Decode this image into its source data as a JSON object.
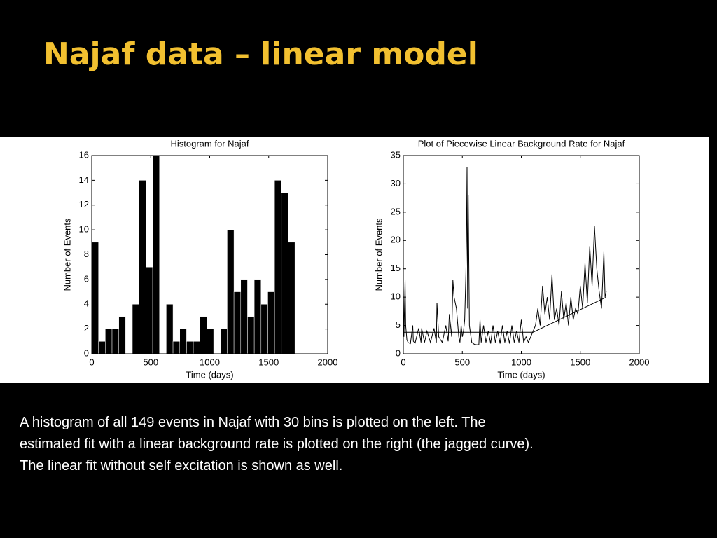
{
  "slide": {
    "title": "Najaf data – linear model",
    "caption": [
      "A histogram of all 149 events in Najaf with 30 bins is plotted on the left. The",
      "estimated fit with a linear background rate is plotted on the right (the jagged curve).",
      "The linear fit without self excitation is shown as well."
    ]
  },
  "chart_data": [
    {
      "type": "histogram",
      "title": "Histogram for Najaf",
      "x_label": "Time (days)",
      "y_label": "Number of Events",
      "color": "#000000",
      "bins": [
        0,
        57.4,
        114.8,
        172.2,
        229.6,
        287,
        344.4,
        401.8,
        459.2,
        516.6,
        574,
        631.4,
        688.8,
        746.2,
        803.6,
        861,
        918.4,
        975.8,
        1033.2,
        1090.6,
        1148,
        1205.4,
        1262.8,
        1320.2,
        1377.6,
        1435,
        1492.4,
        1549.8,
        1607.2,
        1664.6,
        1722
      ],
      "values": [
        9,
        1,
        2,
        2,
        3,
        0,
        4,
        14,
        7,
        16,
        0,
        4,
        1,
        2,
        1,
        1,
        3,
        2,
        0,
        2,
        10,
        5,
        6,
        3,
        6,
        4,
        5,
        14,
        13,
        9
      ],
      "xlim": [
        0,
        2000
      ],
      "xticks": [
        0,
        500,
        1000,
        1500,
        2000
      ],
      "ylim": [
        0,
        16
      ],
      "yticks": [
        0,
        2,
        4,
        6,
        8,
        10,
        12,
        14,
        16
      ]
    },
    {
      "type": "line",
      "title": "Plot of Piecewise Linear Background Rate for Najaf",
      "x_label": "Time (days)",
      "y_label": "Number of Events",
      "series": [
        {
          "color": "#000000",
          "x": [
            0,
            5,
            15,
            20,
            30,
            40,
            60,
            80,
            85,
            100,
            130,
            150,
            155,
            180,
            200,
            230,
            260,
            280,
            285,
            300,
            330,
            360,
            380,
            390,
            410,
            420,
            430,
            450,
            470,
            480,
            490,
            500,
            510,
            520,
            530,
            535,
            540,
            545,
            550,
            560,
            580,
            600,
            620,
            640,
            650,
            660,
            680,
            700,
            720,
            740,
            760,
            780,
            800,
            820,
            840,
            860,
            880,
            900,
            920,
            940,
            960,
            980,
            1000,
            1020,
            1040,
            1060,
            1080,
            1100,
            1120,
            1140,
            1160,
            1180,
            1200,
            1220,
            1240,
            1260,
            1280,
            1300,
            1320,
            1340,
            1360,
            1380,
            1400,
            1420,
            1440,
            1460,
            1480,
            1500,
            1520,
            1540,
            1560,
            1580,
            1600,
            1620,
            1640,
            1660,
            1680,
            1700,
            1710,
            1720
          ],
          "values": [
            12,
            3,
            13,
            5,
            2.5,
            2,
            1.8,
            5,
            2.2,
            1.9,
            4.5,
            2,
            4.5,
            2,
            4,
            2,
            4.5,
            2,
            9,
            3,
            2,
            5,
            2.2,
            7,
            3,
            13,
            10,
            8,
            3,
            2,
            5,
            3,
            4,
            6,
            14,
            20,
            33,
            8,
            28,
            5,
            2,
            1.7,
            1.6,
            1.6,
            6,
            2,
            5,
            2,
            4,
            1.8,
            5,
            2,
            4,
            1.8,
            5,
            2,
            4,
            1.8,
            5,
            2,
            4,
            2,
            6,
            2,
            3,
            2,
            3,
            4,
            5,
            8,
            5,
            12,
            7,
            10,
            6,
            14,
            6,
            8,
            5,
            11,
            6,
            9,
            5,
            10,
            6,
            8,
            7,
            12,
            8,
            16,
            9,
            19,
            12,
            22.5,
            15,
            11,
            8,
            18,
            10,
            11
          ]
        },
        {
          "color": "#000000",
          "x": [
            0,
            1100,
            1720
          ],
          "values": [
            3.8,
            3.8,
            10
          ]
        }
      ],
      "xlim": [
        0,
        2000
      ],
      "xticks": [
        0,
        500,
        1000,
        1500,
        2000
      ],
      "ylim": [
        0,
        35
      ],
      "yticks": [
        0,
        5,
        10,
        15,
        20,
        25,
        30,
        35
      ]
    }
  ]
}
